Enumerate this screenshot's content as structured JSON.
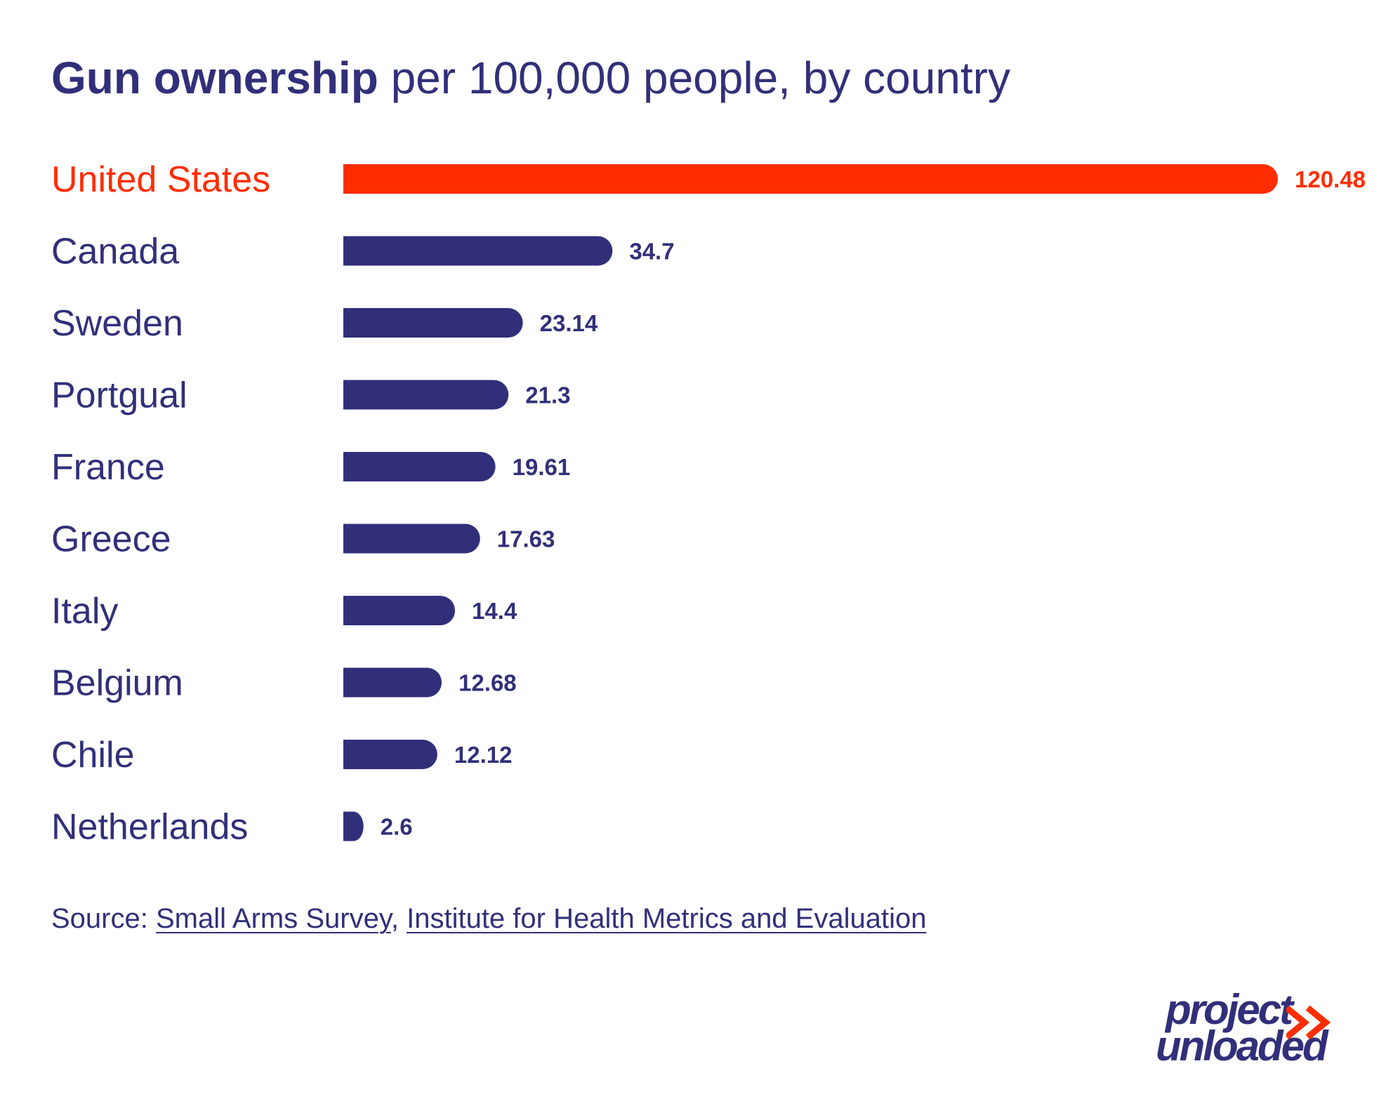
{
  "title": {
    "bold": "Gun ownership",
    "rest": " per 100,000 people, by country"
  },
  "chart_data": {
    "type": "bar",
    "orientation": "horizontal",
    "categories": [
      "United States",
      "Canada",
      "Sweden",
      "Portgual",
      "France",
      "Greece",
      "Italy",
      "Belgium",
      "Chile",
      "Netherlands"
    ],
    "values": [
      120.48,
      34.7,
      23.14,
      21.3,
      19.61,
      17.63,
      14.4,
      12.68,
      12.12,
      2.6
    ],
    "value_labels": [
      "120.48",
      "34.7",
      "23.14",
      "21.3",
      "19.61",
      "17.63",
      "14.4",
      "12.68",
      "12.12",
      "2.6"
    ],
    "highlight_index": 0,
    "xlim": [
      0,
      120.48
    ],
    "grid": false,
    "legend": "none"
  },
  "colors": {
    "highlight": "#ff2d00",
    "bar": "#322f7a",
    "text": "#322f7a"
  },
  "source": {
    "label": "Source: ",
    "links": [
      "Small Arms Survey",
      "Institute for Health Metrics and Evaluation"
    ],
    "separator": ", "
  },
  "logo": {
    "line1": "project",
    "line2": "unloaded"
  }
}
